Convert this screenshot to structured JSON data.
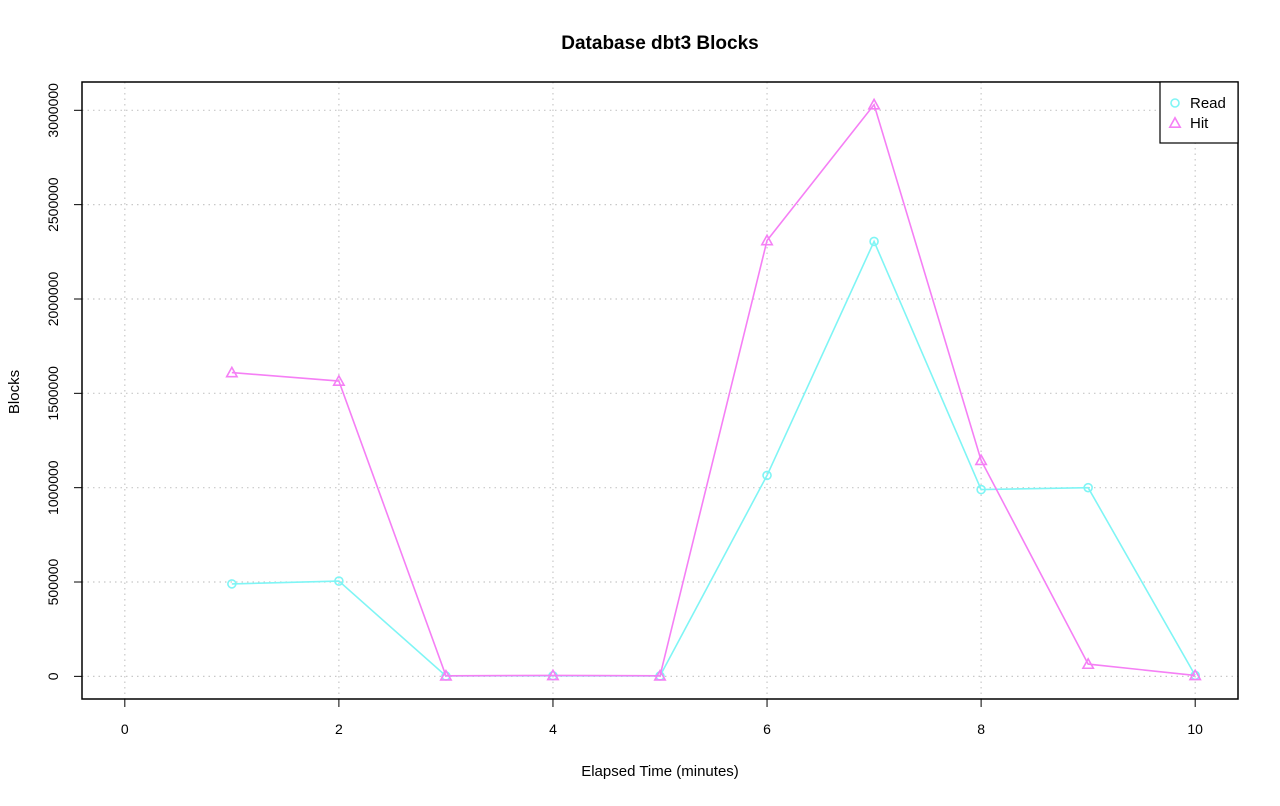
{
  "chart_data": {
    "type": "line",
    "title": "Database dbt3 Blocks",
    "xlabel": "Elapsed Time (minutes)",
    "ylabel": "Blocks",
    "xlim": [
      -0.4,
      10.4
    ],
    "ylim": [
      -120000,
      3150000
    ],
    "x_ticks": [
      0,
      2,
      4,
      6,
      8,
      10
    ],
    "x_tick_labels": [
      "0",
      "2",
      "4",
      "6",
      "8",
      "10"
    ],
    "y_ticks": [
      0,
      500000,
      1000000,
      1500000,
      2000000,
      2500000,
      3000000
    ],
    "y_tick_labels": [
      "0",
      "500000",
      "1000000",
      "1500000",
      "2000000",
      "2500000",
      "3000000"
    ],
    "grid": true,
    "legend_position": "top-right",
    "x": [
      1,
      2,
      3,
      4,
      5,
      6,
      7,
      8,
      9,
      10
    ],
    "series": [
      {
        "name": "Read",
        "color": "#7ff5f5",
        "marker": "circle",
        "values": [
          490000,
          505000,
          2000,
          3000,
          2000,
          1065000,
          2305000,
          990000,
          1000000,
          5000
        ]
      },
      {
        "name": "Hit",
        "color": "#f57ff5",
        "marker": "triangle",
        "values": [
          1610000,
          1565000,
          3000,
          5000,
          3000,
          2310000,
          3030000,
          1145000,
          65000,
          5000
        ]
      }
    ]
  }
}
